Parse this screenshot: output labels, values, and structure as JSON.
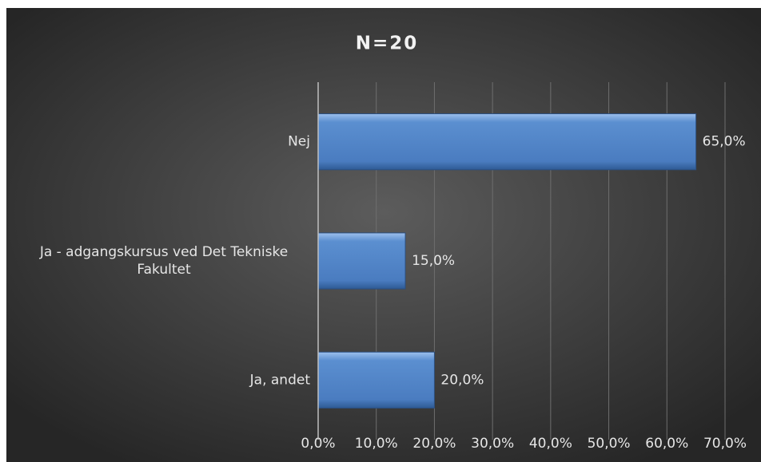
{
  "chart_data": {
    "type": "hbar",
    "title": "N=20",
    "categories": [
      "Nej",
      "Ja - adgangskursus ved Det Tekniske Fakultet",
      "Ja, andet"
    ],
    "values": [
      65,
      15,
      20
    ],
    "value_labels": [
      "65,0%",
      "15,0%",
      "20,0%"
    ],
    "color": "#4f81bd",
    "xlim": [
      0,
      70
    ],
    "xticks": [
      {
        "value": 0,
        "label": "0,0%"
      },
      {
        "value": 10,
        "label": "10,0%"
      },
      {
        "value": 20,
        "label": "20,0%"
      },
      {
        "value": 30,
        "label": "30,0%"
      },
      {
        "value": 40,
        "label": "40,0%"
      },
      {
        "value": 50,
        "label": "50,0%"
      },
      {
        "value": 60,
        "label": "60,0%"
      },
      {
        "value": 70,
        "label": "70,0%"
      }
    ],
    "grid": true
  }
}
